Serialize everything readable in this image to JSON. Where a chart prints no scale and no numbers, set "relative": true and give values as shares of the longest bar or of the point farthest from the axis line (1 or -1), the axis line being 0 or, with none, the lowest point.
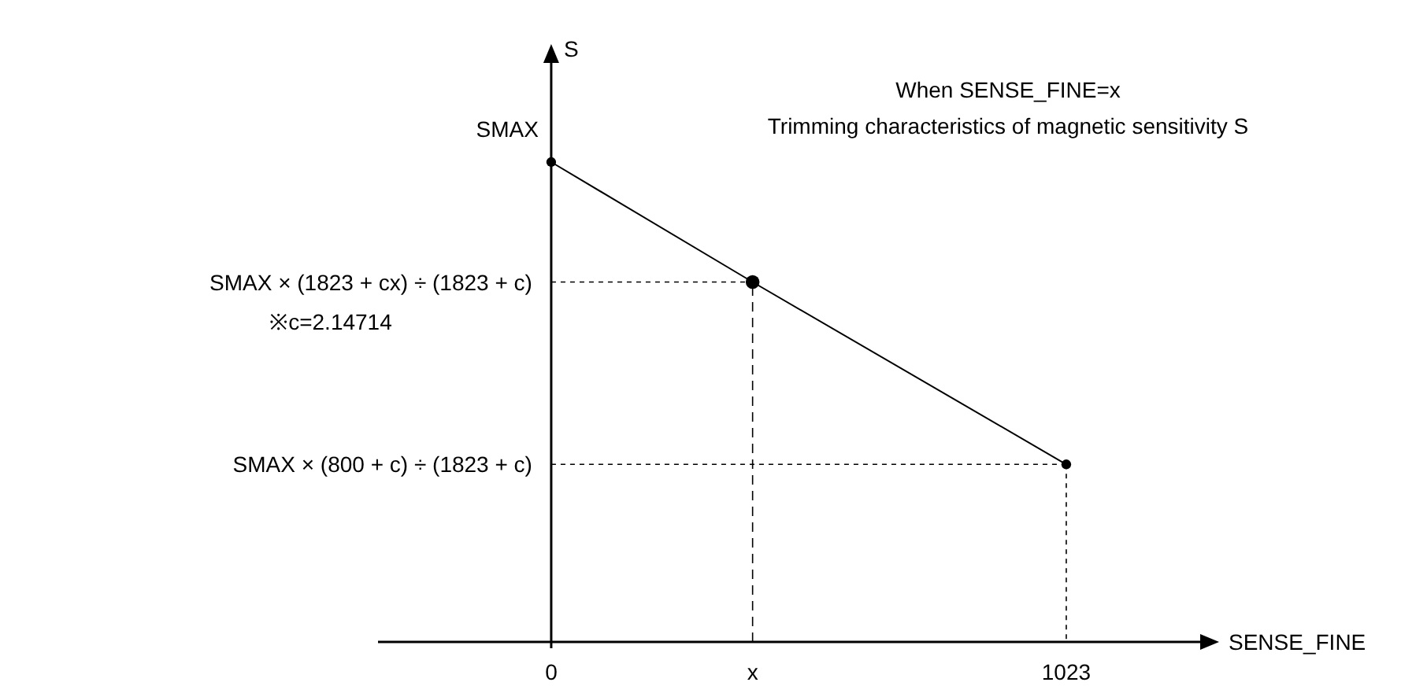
{
  "chart_data": {
    "type": "line",
    "title": "When SENSE_FINE=x",
    "subtitle": "Trimming characteristics of magnetic sensitivity S",
    "xlabel": "SENSE_FINE",
    "ylabel": "S",
    "relative": true,
    "x": [
      0,
      400,
      1023
    ],
    "series": [
      {
        "color": "#000000",
        "values": [
          1,
          0.75,
          0.37
        ]
      }
    ],
    "xlim": [
      -344,
      1289
    ],
    "xticks": [
      0,
      {
        "value": 400,
        "label": "x"
      },
      1023
    ],
    "marker": "circle",
    "line_style": "solid",
    "ref_lines": [
      {
        "axis": "x",
        "value": 400,
        "color": "#000000",
        "line_style": "dashed"
      }
    ],
    "annotations": [
      "SMAX",
      "SMAX × (1823 + cx) ÷ (1823 + c)",
      "※c=2.14714",
      "SMAX × (800 + c) ÷ (1823 + c)"
    ]
  }
}
